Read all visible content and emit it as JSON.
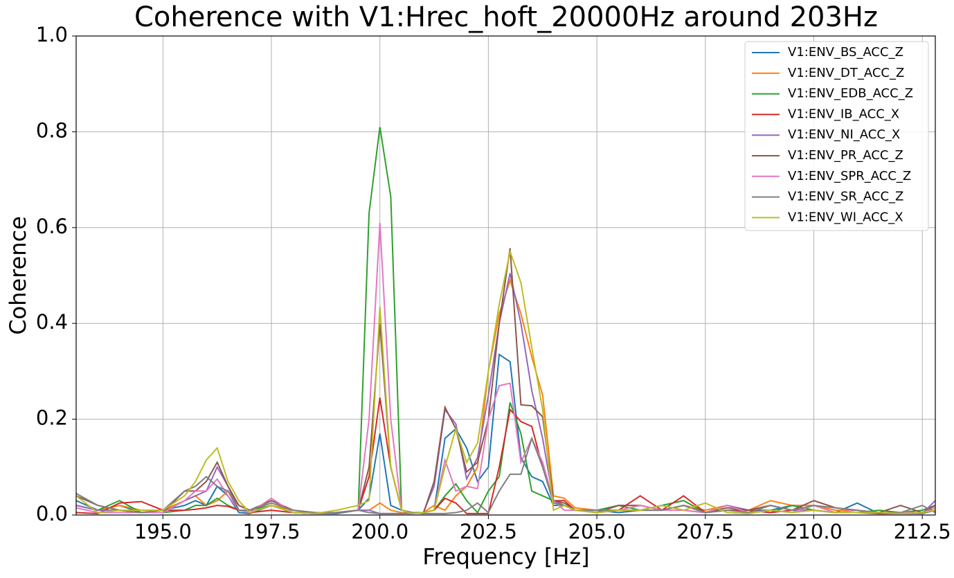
{
  "chart_data": {
    "type": "line",
    "title": "Coherence with V1:Hrec_hoft_20000Hz around 203Hz",
    "x_label": "Frequency [Hz]",
    "y_label": "Coherence",
    "x": [
      193,
      193.5,
      194,
      194.5,
      195,
      195.5,
      195.75,
      196,
      196.25,
      196.5,
      196.75,
      197,
      197.5,
      198,
      198.5,
      199,
      199.5,
      199.75,
      200,
      200.25,
      200.5,
      200.75,
      201,
      201.25,
      201.5,
      201.75,
      202,
      202.25,
      202.5,
      202.75,
      203,
      203.25,
      203.5,
      203.75,
      204,
      204.25,
      204.5,
      205,
      205.5,
      206,
      206.5,
      207,
      207.5,
      208,
      208.5,
      209,
      209.5,
      210,
      210.5,
      211,
      211.5,
      212,
      212.5,
      212.8
    ],
    "series": [
      {
        "name": "V1:ENV_BS_ACC_Z",
        "color": "#1f77b4",
        "values": [
          0.03,
          0.01,
          0.02,
          0.005,
          0.01,
          0.02,
          0.03,
          0.02,
          0.06,
          0.04,
          0.005,
          0.003,
          0.02,
          0.005,
          0.003,
          0.003,
          0.01,
          0.035,
          0.17,
          0.02,
          0.01,
          0.005,
          0.005,
          0.01,
          0.16,
          0.18,
          0.14,
          0.07,
          0.1,
          0.335,
          0.32,
          0.12,
          0.08,
          0.07,
          0.02,
          0.02,
          0.01,
          0.01,
          0.005,
          0.01,
          0.01,
          0.02,
          0.005,
          0.02,
          0.01,
          0.01,
          0.02,
          0.01,
          0.005,
          0.025,
          0.003,
          0.005,
          0.003,
          0.01
        ]
      },
      {
        "name": "V1:ENV_DT_ACC_Z",
        "color": "#ff7f0e",
        "values": [
          0.02,
          0.01,
          0.02,
          0.01,
          0.01,
          0.03,
          0.04,
          0.02,
          0.03,
          0.05,
          0.02,
          0.01,
          0.02,
          0.01,
          0.005,
          0.005,
          0.01,
          0.01,
          0.025,
          0.01,
          0.005,
          0.003,
          0.005,
          0.02,
          0.01,
          0.04,
          0.06,
          0.1,
          0.3,
          0.42,
          0.49,
          0.42,
          0.33,
          0.25,
          0.04,
          0.035,
          0.015,
          0.01,
          0.01,
          0.02,
          0.01,
          0.02,
          0.01,
          0.02,
          0.01,
          0.03,
          0.02,
          0.02,
          0.01,
          0.01,
          0.005,
          0.005,
          0.005,
          0.01
        ]
      },
      {
        "name": "V1:ENV_EDB_ACC_Z",
        "color": "#2ca02c",
        "values": [
          0.02,
          0.01,
          0.03,
          0.005,
          0.005,
          0.01,
          0.02,
          0.02,
          0.035,
          0.02,
          0.01,
          0.01,
          0.02,
          0.005,
          0.003,
          0.005,
          0.01,
          0.63,
          0.81,
          0.665,
          0.01,
          0.005,
          0.005,
          0.01,
          0.04,
          0.065,
          0.03,
          0.005,
          0.05,
          0.08,
          0.235,
          0.17,
          0.05,
          0.04,
          0.03,
          0.02,
          0.01,
          0.01,
          0.02,
          0.01,
          0.02,
          0.03,
          0.005,
          0.01,
          0.01,
          0.005,
          0.02,
          0.01,
          0.005,
          0.005,
          0.01,
          0.005,
          0.01,
          0.02
        ]
      },
      {
        "name": "V1:ENV_IB_ACC_X",
        "color": "#d62728",
        "values": [
          0.005,
          0.003,
          0.025,
          0.028,
          0.01,
          0.01,
          0.012,
          0.015,
          0.02,
          0.018,
          0.01,
          0.005,
          0.01,
          0.005,
          0.003,
          0.005,
          0.01,
          0.08,
          0.245,
          0.1,
          0.01,
          0.003,
          0.005,
          0.01,
          0.035,
          0.025,
          0.003,
          0.003,
          0.003,
          0.1,
          0.22,
          0.195,
          0.185,
          0.1,
          0.03,
          0.03,
          0.01,
          0.005,
          0.01,
          0.04,
          0.01,
          0.04,
          0.005,
          0.01,
          0.01,
          0.005,
          0.01,
          0.01,
          0.005,
          0.005,
          0.003,
          0.003,
          0.005,
          0.01
        ]
      },
      {
        "name": "V1:ENV_NI_ACC_X",
        "color": "#9467bd",
        "values": [
          0.02,
          0.01,
          0.01,
          0.005,
          0.005,
          0.03,
          0.04,
          0.05,
          0.1,
          0.06,
          0.01,
          0.01,
          0.03,
          0.01,
          0.003,
          0.005,
          0.01,
          0.01,
          0.003,
          0.003,
          0.003,
          0.003,
          0.005,
          0.06,
          0.22,
          0.19,
          0.075,
          0.12,
          0.25,
          0.4,
          0.505,
          0.4,
          0.26,
          0.16,
          0.03,
          0.02,
          0.01,
          0.005,
          0.01,
          0.01,
          0.02,
          0.01,
          0.005,
          0.02,
          0.01,
          0.02,
          0.01,
          0.01,
          0.005,
          0.005,
          0.005,
          0.003,
          0.003,
          0.03
        ]
      },
      {
        "name": "V1:ENV_PR_ACC_Z",
        "color": "#8c564b",
        "values": [
          0.04,
          0.02,
          0.01,
          0.005,
          0.005,
          0.05,
          0.05,
          0.07,
          0.11,
          0.06,
          0.02,
          0.01,
          0.03,
          0.01,
          0.005,
          0.005,
          0.01,
          0.1,
          0.4,
          0.1,
          0.01,
          0.005,
          0.003,
          0.07,
          0.225,
          0.18,
          0.09,
          0.11,
          0.2,
          0.4,
          0.557,
          0.23,
          0.228,
          0.205,
          0.03,
          0.025,
          0.01,
          0.005,
          0.02,
          0.02,
          0.01,
          0.02,
          0.005,
          0.015,
          0.01,
          0.02,
          0.01,
          0.03,
          0.015,
          0.01,
          0.005,
          0.02,
          0.005,
          0.02
        ]
      },
      {
        "name": "V1:ENV_SPR_ACC_Z",
        "color": "#e377c2",
        "values": [
          0.015,
          0.005,
          0.005,
          0.005,
          0.005,
          0.03,
          0.05,
          0.05,
          0.075,
          0.04,
          0.01,
          0.005,
          0.035,
          0.005,
          0.003,
          0.005,
          0.01,
          0.2,
          0.61,
          0.2,
          0.01,
          0.003,
          0.005,
          0.01,
          0.115,
          0.05,
          0.06,
          0.055,
          0.2,
          0.27,
          0.275,
          0.11,
          0.16,
          0.11,
          0.03,
          0.01,
          0.01,
          0.01,
          0.01,
          0.02,
          0.01,
          0.01,
          0.005,
          0.02,
          0.005,
          0.01,
          0.005,
          0.02,
          0.005,
          0.01,
          0.005,
          0.005,
          0.005,
          0.015
        ]
      },
      {
        "name": "V1:ENV_SR_ACC_Z",
        "color": "#7f7f7f",
        "values": [
          0.045,
          0.02,
          0.01,
          0.005,
          0.01,
          0.05,
          0.06,
          0.08,
          0.06,
          0.05,
          0.01,
          0.01,
          0.025,
          0.01,
          0.005,
          0.005,
          0.01,
          0.005,
          0.003,
          0.003,
          0.003,
          0.005,
          0.003,
          0.003,
          0.003,
          0.005,
          0.01,
          0.025,
          0.005,
          0.05,
          0.085,
          0.085,
          0.16,
          0.1,
          0.025,
          0.02,
          0.01,
          0.01,
          0.01,
          0.01,
          0.01,
          0.02,
          0.005,
          0.01,
          0.005,
          0.02,
          0.01,
          0.02,
          0.015,
          0.01,
          0.005,
          0.005,
          0.02,
          0.005
        ]
      },
      {
        "name": "V1:ENV_WI_ACC_X",
        "color": "#bcbd22",
        "values": [
          0.04,
          0.005,
          0.01,
          0.01,
          0.01,
          0.04,
          0.07,
          0.115,
          0.14,
          0.07,
          0.03,
          0.005,
          0.02,
          0.005,
          0.003,
          0.01,
          0.02,
          0.03,
          0.435,
          0.1,
          0.01,
          0.003,
          0.005,
          0.01,
          0.1,
          0.18,
          0.11,
          0.15,
          0.3,
          0.44,
          0.55,
          0.485,
          0.35,
          0.22,
          0.01,
          0.02,
          0.01,
          0.005,
          0.01,
          0.01,
          0.02,
          0.01,
          0.025,
          0.005,
          0.003,
          0.01,
          0.005,
          0.01,
          0.005,
          0.005,
          0.005,
          0.003,
          0.005,
          0.01
        ]
      }
    ],
    "xlim": [
      193,
      212.8
    ],
    "xticks": [
      {
        "value": 195,
        "label": "195.0"
      },
      197.5,
      {
        "value": 200,
        "label": "200.0"
      },
      202.5,
      {
        "value": 205,
        "label": "205.0"
      },
      207.5,
      {
        "value": 210,
        "label": "210.0"
      },
      212.5
    ],
    "ylim": [
      0,
      1
    ],
    "yticks": [
      {
        "value": 0,
        "label": "0.0"
      },
      0.2,
      0.4,
      0.6,
      0.8,
      {
        "value": 1,
        "label": "1.0"
      }
    ],
    "grid": true,
    "legend": "upper right"
  }
}
